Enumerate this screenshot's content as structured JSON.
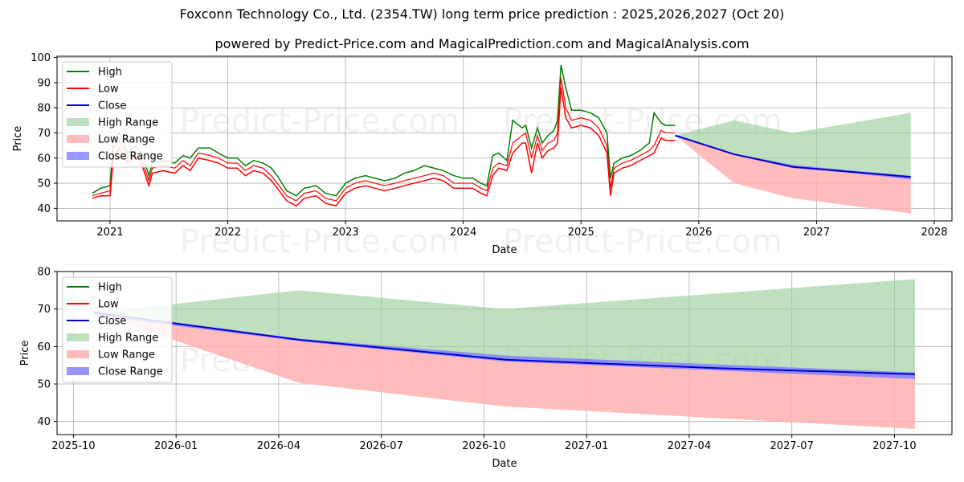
{
  "header": {
    "title": "Foxconn Technology Co., Ltd. (2354.TW) long term price prediction : 2025,2026,2027 (Oct 20)",
    "subtitle": "powered by Predict-Price.com and MagicalPrediction.com and MagicalAnalysis.com"
  },
  "watermark": "Predict-Price.com",
  "legend_labels": [
    "High",
    "Low",
    "Close",
    "High Range",
    "Low Range",
    "Close Range"
  ],
  "colors": {
    "high": "#008000",
    "low": "#ff0000",
    "close": "#0000cd",
    "high_range": "#9dd09d",
    "low_range": "#ffb0b0",
    "close_range": "#7d7dff",
    "grid": "#b0b0b0"
  },
  "chart_data": [
    {
      "type": "line",
      "title": "",
      "xlabel": "Date",
      "ylabel": "Price",
      "xlim": [
        2020.55,
        2028.15
      ],
      "ylim": [
        35,
        100.5
      ],
      "grid": true,
      "legend": "top-left",
      "xticks": [
        {
          "v": 2021,
          "label": "2021"
        },
        {
          "v": 2022,
          "label": "2022"
        },
        {
          "v": 2023,
          "label": "2023"
        },
        {
          "v": 2024,
          "label": "2024"
        },
        {
          "v": 2025,
          "label": "2025"
        },
        {
          "v": 2026,
          "label": "2026"
        },
        {
          "v": 2027,
          "label": "2027"
        },
        {
          "v": 2028,
          "label": "2028"
        }
      ],
      "yticks": [
        40,
        50,
        60,
        70,
        80,
        90,
        100
      ],
      "history": {
        "x": [
          2020.85,
          2020.92,
          2021.0,
          2021.03,
          2021.08,
          2021.15,
          2021.22,
          2021.28,
          2021.33,
          2021.36,
          2021.45,
          2021.55,
          2021.62,
          2021.68,
          2021.75,
          2021.85,
          2021.92,
          2022.0,
          2022.08,
          2022.15,
          2022.22,
          2022.3,
          2022.37,
          2022.42,
          2022.5,
          2022.58,
          2022.65,
          2022.75,
          2022.83,
          2022.92,
          2023.0,
          2023.08,
          2023.17,
          2023.25,
          2023.33,
          2023.42,
          2023.5,
          2023.58,
          2023.67,
          2023.75,
          2023.83,
          2023.92,
          2024.0,
          2024.08,
          2024.15,
          2024.2,
          2024.25,
          2024.3,
          2024.37,
          2024.42,
          2024.5,
          2024.53,
          2024.58,
          2024.63,
          2024.67,
          2024.72,
          2024.77,
          2024.8,
          2024.83,
          2024.87,
          2024.92,
          2025.0,
          2025.08,
          2025.15,
          2025.22,
          2025.25,
          2025.28,
          2025.35,
          2025.42,
          2025.5,
          2025.58,
          2025.62,
          2025.68,
          2025.72,
          2025.8
        ],
        "close": [
          45,
          46,
          47,
          64,
          67,
          60,
          63,
          58,
          51,
          56,
          57,
          56,
          59,
          57,
          62,
          61,
          60,
          58,
          58,
          55,
          57,
          56,
          53,
          50,
          45,
          43,
          46,
          47,
          44,
          43,
          48,
          50,
          51,
          50,
          49,
          50,
          51,
          52,
          53,
          54,
          53,
          50,
          50,
          50,
          48,
          47,
          56,
          58,
          57,
          66,
          69,
          70,
          60,
          69,
          63,
          66,
          67,
          70,
          92,
          80,
          75,
          76,
          75,
          72,
          65,
          48,
          56,
          58,
          59,
          61,
          63,
          65,
          71,
          70,
          70
        ],
        "high": [
          46,
          48,
          49,
          67,
          70,
          62,
          65,
          61,
          53,
          58,
          59,
          58,
          61,
          60,
          64,
          64,
          62,
          60,
          60,
          57,
          59,
          58,
          56,
          53,
          47,
          45,
          48,
          49,
          46,
          45,
          50,
          52,
          53,
          52,
          51,
          52,
          54,
          55,
          57,
          56,
          55,
          53,
          52,
          52,
          50,
          49,
          61,
          62,
          59,
          75,
          72,
          73,
          64,
          72,
          66,
          69,
          71,
          75,
          97,
          88,
          79,
          79,
          78,
          76,
          70,
          52,
          58,
          60,
          61,
          63,
          66,
          78,
          74,
          73,
          73
        ],
        "low": [
          44,
          45,
          45,
          61,
          64,
          58,
          61,
          56,
          49,
          54,
          55,
          54,
          57,
          55,
          60,
          59,
          58,
          56,
          56,
          53,
          55,
          54,
          51,
          48,
          43,
          41,
          44,
          45,
          42,
          41,
          46,
          48,
          49,
          48,
          47,
          48,
          49,
          50,
          51,
          52,
          51,
          48,
          48,
          48,
          46,
          45,
          53,
          56,
          55,
          62,
          66,
          66,
          54,
          66,
          60,
          63,
          64,
          66,
          88,
          76,
          72,
          73,
          72,
          69,
          62,
          45,
          54,
          56,
          57,
          59,
          61,
          62,
          68,
          67,
          67
        ]
      },
      "forecast": {
        "x": [
          2025.8,
          2026.3,
          2026.8,
          2027.3,
          2027.8
        ],
        "close": [
          69,
          61.5,
          56.5,
          54.5,
          52.5
        ],
        "high_range": [
          69,
          75,
          70,
          74,
          78
        ],
        "low_range": [
          69,
          50,
          44,
          41,
          38
        ],
        "close_range_upper": [
          69,
          61.8,
          57.3,
          55,
          53
        ],
        "close_range_lower": [
          68.5,
          61.3,
          56,
          54,
          51.5
        ]
      }
    },
    {
      "type": "line",
      "title": "",
      "xlabel": "Date",
      "ylabel": "Price",
      "xlim": [
        2025.71,
        2027.89
      ],
      "ylim": [
        36.5,
        80
      ],
      "grid": true,
      "legend": "top-left",
      "xticks": [
        {
          "v": 2025.75,
          "label": "2025-10"
        },
        {
          "v": 2026.0,
          "label": "2026-01"
        },
        {
          "v": 2026.25,
          "label": "2026-04"
        },
        {
          "v": 2026.5,
          "label": "2026-07"
        },
        {
          "v": 2026.75,
          "label": "2026-10"
        },
        {
          "v": 2027.0,
          "label": "2027-01"
        },
        {
          "v": 2027.25,
          "label": "2027-04"
        },
        {
          "v": 2027.5,
          "label": "2027-07"
        },
        {
          "v": 2027.75,
          "label": "2027-10"
        }
      ],
      "yticks": [
        40,
        50,
        60,
        70,
        80
      ],
      "forecast": {
        "x": [
          2025.8,
          2026.3,
          2026.8,
          2027.3,
          2027.8
        ],
        "close": [
          69,
          61.8,
          56.5,
          54.3,
          52.6
        ],
        "high_range": [
          69,
          75,
          70,
          74,
          78
        ],
        "low_range": [
          69,
          50.3,
          44,
          41,
          38
        ],
        "close_range_upper": [
          69.3,
          62.1,
          57.6,
          55.3,
          53.1
        ],
        "close_range_lower": [
          68.3,
          61.4,
          56,
          53.7,
          51.3
        ]
      }
    }
  ]
}
